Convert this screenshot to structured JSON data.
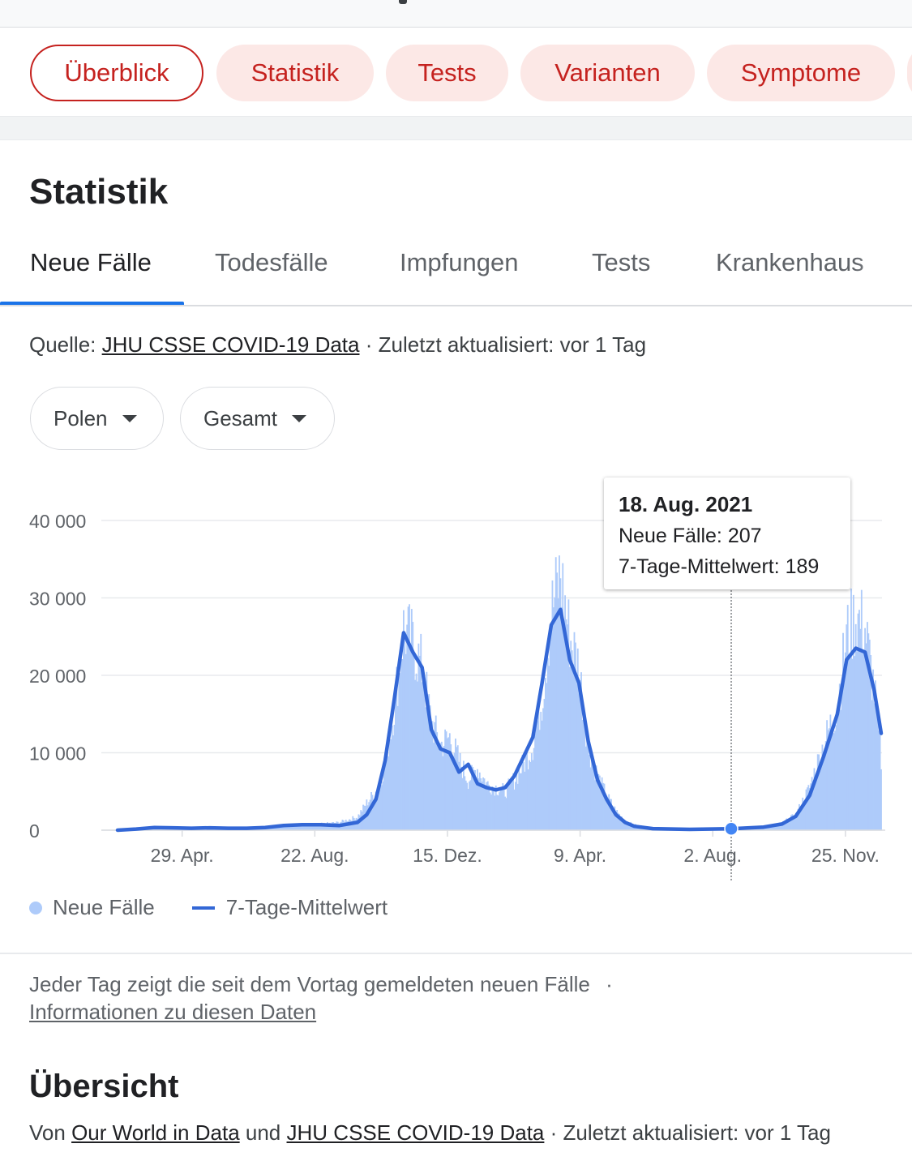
{
  "nav_chips": [
    {
      "label": "Überblick",
      "active": true
    },
    {
      "label": "Statistik",
      "active": false
    },
    {
      "label": "Tests",
      "active": false
    },
    {
      "label": "Varianten",
      "active": false
    },
    {
      "label": "Symptome",
      "active": false
    }
  ],
  "section_title": "Statistik",
  "tabs": [
    "Neue Fälle",
    "Todesfälle",
    "Impfungen",
    "Tests",
    "Krankenhaus"
  ],
  "source": {
    "prefix": "Quelle:",
    "link": "JHU CSSE COVID-19 Data",
    "suffix": "· Zuletzt aktualisiert: vor 1 Tag"
  },
  "filters": {
    "country": "Polen",
    "scope": "Gesamt"
  },
  "tooltip": {
    "date": "18. Aug. 2021",
    "new_cases_label": "Neue Fälle:",
    "new_cases_value": "207",
    "avg_label": "7-Tage-Mittelwert:",
    "avg_value": "189"
  },
  "legend": {
    "bars": "Neue Fälle",
    "line": "7-Tage-Mittelwert"
  },
  "footnote": {
    "text": "Jeder Tag zeigt die seit dem Vortag gemeldeten neuen Fälle",
    "separator": "·",
    "link": "Informationen zu diesen Daten"
  },
  "overview": {
    "title": "Übersicht",
    "from": "Von",
    "link1": "Our World in Data",
    "and": "und",
    "link2": "JHU CSSE COVID-19 Data",
    "suffix": "· Zuletzt aktualisiert: vor 1 Tag"
  },
  "colors": {
    "accent_red": "#c5221f",
    "chip_bg": "#fce8e6",
    "bars": "#aecbfa",
    "line": "#3367d6",
    "tab_active": "#1a73e8"
  },
  "chart_data": {
    "type": "bar",
    "x_tick_labels": [
      "29. Apr.",
      "22. Aug.",
      "15. Dez.",
      "9. Apr.",
      "2. Aug.",
      "25. Nov."
    ],
    "y_tick_labels": [
      "0",
      "10 000",
      "20 000",
      "30 000",
      "40 000"
    ],
    "ylim": [
      0,
      40000
    ],
    "grid": true,
    "legend_position": "bottom-left",
    "series": [
      {
        "name": "Neue Fälle",
        "kind": "bars",
        "x": [
          "2020-03-04",
          "2020-03-20",
          "2020-04-05",
          "2020-04-21",
          "2020-05-07",
          "2020-05-23",
          "2020-06-08",
          "2020-06-24",
          "2020-07-10",
          "2020-07-26",
          "2020-08-11",
          "2020-08-27",
          "2020-09-12",
          "2020-09-28",
          "2020-10-06",
          "2020-10-14",
          "2020-10-22",
          "2020-10-30",
          "2020-11-07",
          "2020-11-15",
          "2020-11-23",
          "2020-12-01",
          "2020-12-09",
          "2020-12-17",
          "2020-12-25",
          "2021-01-02",
          "2021-01-10",
          "2021-01-18",
          "2021-01-26",
          "2021-02-03",
          "2021-02-11",
          "2021-02-19",
          "2021-02-27",
          "2021-03-07",
          "2021-03-15",
          "2021-03-23",
          "2021-03-31",
          "2021-04-08",
          "2021-04-16",
          "2021-04-24",
          "2021-05-02",
          "2021-05-10",
          "2021-05-18",
          "2021-05-26",
          "2021-06-11",
          "2021-07-13",
          "2021-08-18",
          "2021-09-15",
          "2021-10-01",
          "2021-10-13",
          "2021-10-25",
          "2021-11-06",
          "2021-11-18",
          "2021-11-26",
          "2021-12-04",
          "2021-12-12",
          "2021-12-20",
          "2021-12-26"
        ],
        "values": [
          0,
          250,
          400,
          300,
          350,
          300,
          380,
          300,
          400,
          600,
          700,
          800,
          1000,
          1700,
          3500,
          5000,
          8500,
          16000,
          26000,
          24000,
          21000,
          14000,
          11000,
          12000,
          9000,
          6500,
          8000,
          6000,
          5500,
          5000,
          6500,
          8500,
          11000,
          17000,
          28000,
          33000,
          25000,
          21000,
          11000,
          7000,
          4500,
          2500,
          1200,
          700,
          300,
          100,
          207,
          500,
          900,
          2000,
          5500,
          11000,
          16000,
          25000,
          27500,
          26000,
          18000,
          9000
        ]
      },
      {
        "name": "7-Tage-Mittelwert",
        "kind": "line",
        "x": [
          "2020-03-04",
          "2020-03-20",
          "2020-04-05",
          "2020-04-21",
          "2020-05-07",
          "2020-05-23",
          "2020-06-08",
          "2020-06-24",
          "2020-07-10",
          "2020-07-26",
          "2020-08-11",
          "2020-08-27",
          "2020-09-12",
          "2020-09-28",
          "2020-10-06",
          "2020-10-14",
          "2020-10-22",
          "2020-10-30",
          "2020-11-07",
          "2020-11-15",
          "2020-11-23",
          "2020-12-01",
          "2020-12-09",
          "2020-12-17",
          "2020-12-25",
          "2021-01-02",
          "2021-01-10",
          "2021-01-18",
          "2021-01-26",
          "2021-02-03",
          "2021-02-11",
          "2021-02-19",
          "2021-02-27",
          "2021-03-07",
          "2021-03-15",
          "2021-03-23",
          "2021-03-31",
          "2021-04-08",
          "2021-04-16",
          "2021-04-24",
          "2021-05-02",
          "2021-05-10",
          "2021-05-18",
          "2021-05-26",
          "2021-06-11",
          "2021-07-13",
          "2021-08-18",
          "2021-09-15",
          "2021-10-01",
          "2021-10-13",
          "2021-10-25",
          "2021-11-06",
          "2021-11-18",
          "2021-11-26",
          "2021-12-04",
          "2021-12-12",
          "2021-12-20",
          "2021-12-26"
        ],
        "values": [
          0,
          150,
          350,
          300,
          250,
          300,
          250,
          250,
          350,
          600,
          700,
          700,
          600,
          1000,
          2000,
          4000,
          9000,
          17000,
          25500,
          23000,
          21000,
          13000,
          10500,
          10000,
          7500,
          8500,
          6000,
          5500,
          5200,
          5500,
          7000,
          9500,
          12000,
          19000,
          26500,
          28500,
          22000,
          19000,
          11500,
          6500,
          4000,
          2000,
          1000,
          500,
          200,
          100,
          189,
          400,
          800,
          1800,
          4500,
          9500,
          15000,
          22000,
          23500,
          23000,
          18000,
          12500
        ]
      }
    ],
    "highlight": {
      "x": "2021-08-18",
      "label": "18. Aug. 2021"
    }
  }
}
